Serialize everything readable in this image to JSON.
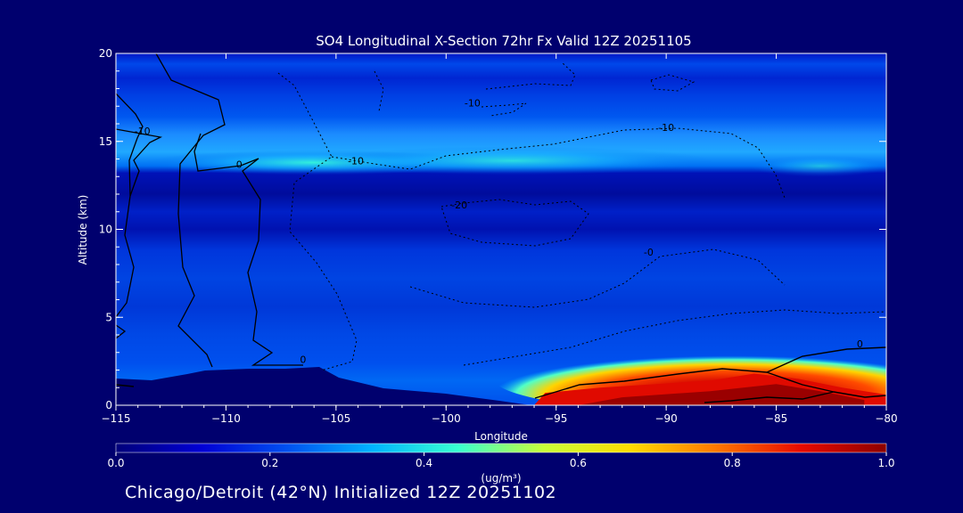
{
  "chart_data": {
    "type": "heatmap",
    "title": "SO4 Longitudinal X-Section 72hr  Fx Valid 12Z 20251105",
    "xlabel": "Longitude",
    "ylabel": "Altitude (km)",
    "xlim": [
      -115,
      -80
    ],
    "ylim": [
      0,
      20
    ],
    "x_ticks": [
      -115,
      -110,
      -105,
      -100,
      -95,
      -90,
      -85,
      -80
    ],
    "x_tick_labels": [
      "−115",
      "−110",
      "−105",
      "−100",
      "−95",
      "−90",
      "−85",
      "−80"
    ],
    "y_ticks": [
      0,
      5,
      10,
      15,
      20
    ],
    "y_tick_labels": [
      "0",
      "5",
      "10",
      "15",
      "20"
    ],
    "colorbar": {
      "range": [
        0.0,
        1.0
      ],
      "ticks": [
        0.0,
        0.2,
        0.4,
        0.6,
        0.8,
        1.0
      ],
      "tick_labels": [
        "0.0",
        "0.2",
        "0.4",
        "0.6",
        "0.8",
        "1.0"
      ],
      "units_label": "(ug/m³)",
      "colors": [
        "#00007a",
        "#0000d4",
        "#0050f0",
        "#00b4ff",
        "#38ffd0",
        "#c8ff38",
        "#ffdc00",
        "#ff7800",
        "#e80a00",
        "#8c0000"
      ]
    },
    "contour_labels": [
      {
        "text": "-10",
        "lon": -113.8,
        "alt": 15.4
      },
      {
        "text": "0",
        "lon": -109.4,
        "alt": 13.5
      },
      {
        "text": "-10",
        "lon": -104.1,
        "alt": 13.7
      },
      {
        "text": "-10",
        "lon": -98.8,
        "alt": 17.0
      },
      {
        "text": "-10",
        "lon": -90.0,
        "alt": 15.6
      },
      {
        "text": "-20",
        "lon": -99.4,
        "alt": 11.2
      },
      {
        "text": "-0",
        "lon": -90.8,
        "alt": 8.5
      },
      {
        "text": "0",
        "lon": -106.5,
        "alt": 2.4
      },
      {
        "text": "0",
        "lon": -81.2,
        "alt": 3.3
      }
    ],
    "plumes": [
      {
        "name": "upper-layer aerosol",
        "lon_range": [
          -115,
          -80
        ],
        "alt_center": 13.8,
        "max_conc": 0.35
      },
      {
        "name": "boundary-layer SO4 plume",
        "lon_range": [
          -96,
          -80
        ],
        "alt_center": 0.6,
        "max_conc": 1.0
      }
    ]
  },
  "colors": {
    "page_background": "#00006e",
    "text": "#ffffff"
  },
  "footer": {
    "caption": "Chicago/Detroit (42°N) Initialized 12Z 20251102"
  }
}
